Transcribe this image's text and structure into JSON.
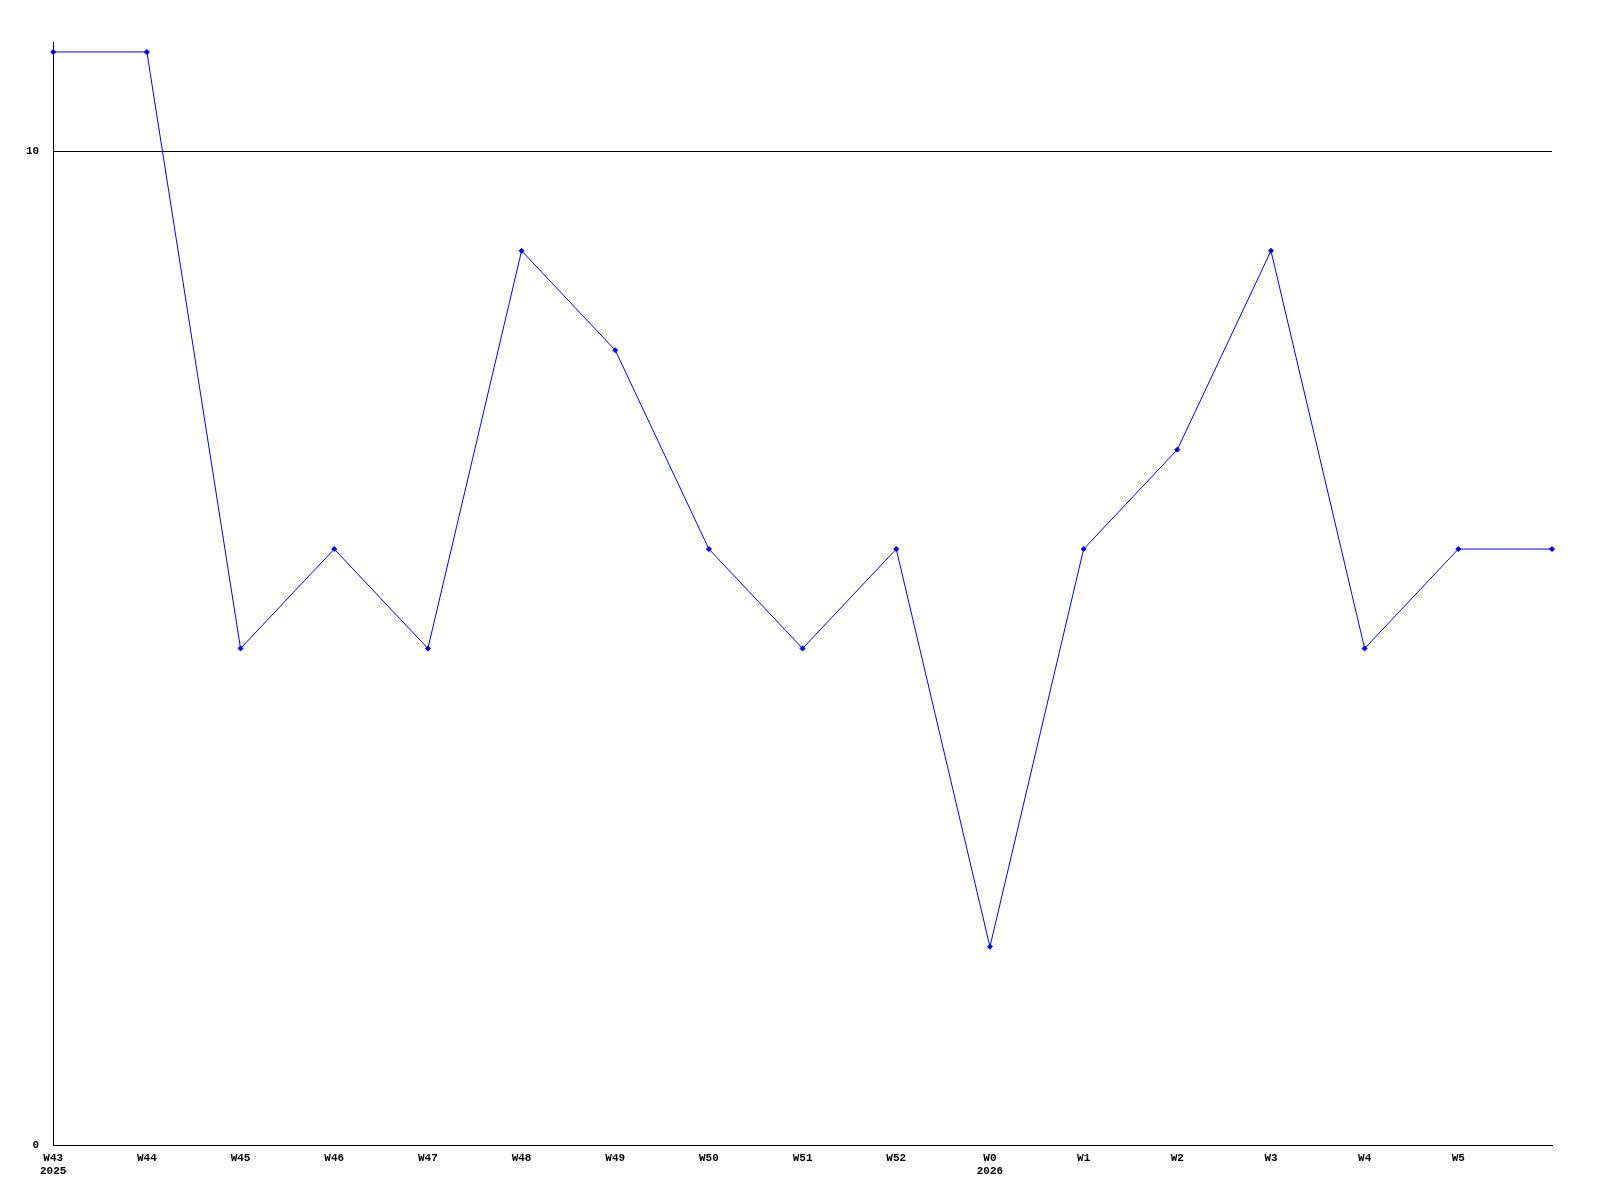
{
  "chart_data": {
    "type": "line",
    "categories": [
      "W43\n2025",
      "W44",
      "W45",
      "W46",
      "W47",
      "W48",
      "W49",
      "W50",
      "W51",
      "W52",
      "W0\n2026",
      "W1",
      "W2",
      "W3",
      "W4",
      "W5",
      null
    ],
    "series": [
      {
        "color": "#0000ff",
        "values": [
          11,
          11,
          5,
          6,
          5,
          9,
          8,
          6,
          5,
          6,
          2,
          6,
          7,
          9,
          5,
          6,
          6
        ]
      }
    ],
    "ylim": [
      0,
      11.1
    ],
    "yticks": [
      0,
      10
    ],
    "grid": "y",
    "legend": false,
    "marker": "diamond",
    "line_style": "solid"
  }
}
